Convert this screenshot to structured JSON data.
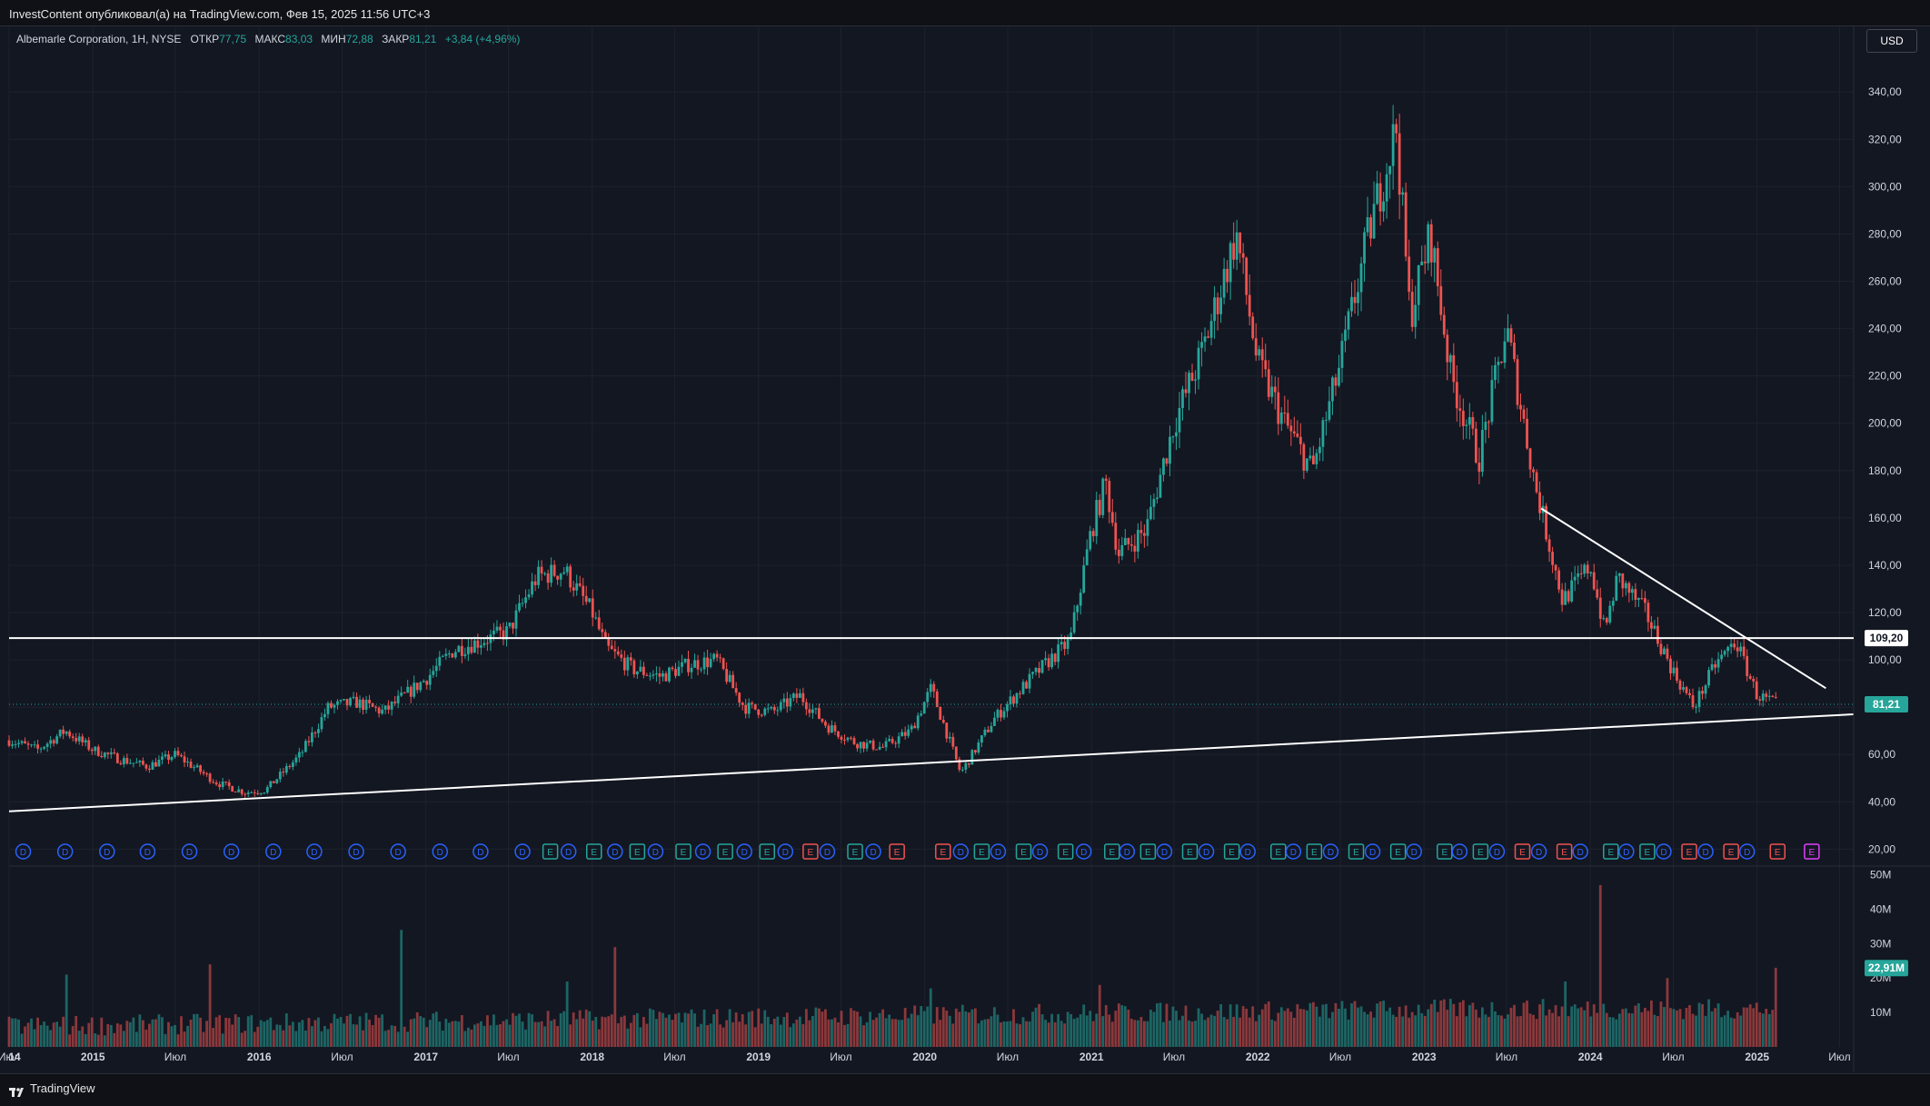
{
  "header": {
    "publish_note": "InvestContent опубликовал(а) на TradingView.com, Фев 15, 2025 11:56 UTC+3"
  },
  "legend": {
    "symbol": "Albemarle Corporation, 1Н, NYSE",
    "open_label": "ОТКР",
    "open_value": "77,75",
    "high_label": "МАКС",
    "high_value": "83,03",
    "low_label": "МИН",
    "low_value": "72,88",
    "close_label": "ЗАКР",
    "close_value": "81,21",
    "change": "+3,84 (+4,96%)"
  },
  "currency_button": "USD",
  "footer": {
    "brand": "TradingView"
  },
  "colors": {
    "up": "#26a69a",
    "down": "#ef5350",
    "background": "#131722",
    "grid": "#1e222d",
    "line": "#ffffff",
    "dividend_badge": "#2962ff",
    "earnings_badge": "#26a69a",
    "earnings_miss_badge": "#ef5350",
    "earnings_future_badge": "#e040fb",
    "text": "#d1d4dc"
  },
  "chart_data": [
    {
      "type": "candlestick",
      "x_axis": {
        "type": "time",
        "range": [
          "2014-07-01",
          "2025-08-01"
        ],
        "tick_labels": [
          {
            "date": "2014-01-01",
            "label": "14"
          },
          {
            "date": "2014-07-01",
            "label": "Июл"
          },
          {
            "date": "2015-01-01",
            "label": "2015"
          },
          {
            "date": "2015-07-01",
            "label": "Июл"
          },
          {
            "date": "2016-01-01",
            "label": "2016"
          },
          {
            "date": "2016-07-01",
            "label": "Июл"
          },
          {
            "date": "2017-01-01",
            "label": "2017"
          },
          {
            "date": "2017-07-01",
            "label": "Июл"
          },
          {
            "date": "2018-01-01",
            "label": "2018"
          },
          {
            "date": "2018-07-01",
            "label": "Июл"
          },
          {
            "date": "2019-01-01",
            "label": "2019"
          },
          {
            "date": "2019-07-01",
            "label": "Июл"
          },
          {
            "date": "2020-01-01",
            "label": "2020"
          },
          {
            "date": "2020-07-01",
            "label": "Июл"
          },
          {
            "date": "2021-01-01",
            "label": "2021"
          },
          {
            "date": "2021-07-01",
            "label": "Июл"
          },
          {
            "date": "2022-01-01",
            "label": "2022"
          },
          {
            "date": "2022-07-01",
            "label": "Июл"
          },
          {
            "date": "2023-01-01",
            "label": "2023"
          },
          {
            "date": "2023-07-01",
            "label": "Июл"
          },
          {
            "date": "2024-01-01",
            "label": "2024"
          },
          {
            "date": "2024-07-01",
            "label": "Июл"
          },
          {
            "date": "2025-01-01",
            "label": "2025"
          },
          {
            "date": "2025-07-01",
            "label": "Июл"
          }
        ]
      },
      "y_axis": {
        "scale": "linear",
        "ylim": [
          14,
          352
        ],
        "ticks": [
          20,
          40,
          60,
          80,
          100,
          120,
          140,
          160,
          180,
          200,
          220,
          240,
          260,
          280,
          300,
          320,
          340
        ],
        "tick_labels": [
          "20,00",
          "40,00",
          "60,00",
          "80,00",
          "100,00",
          "120,00",
          "140,00",
          "160,00",
          "180,00",
          "200,00",
          "220,00",
          "240,00",
          "260,00",
          "280,00",
          "300,00",
          "320,00",
          "340,00"
        ]
      },
      "price_path": [
        [
          "2014-07-01",
          66
        ],
        [
          "2014-09-01",
          62
        ],
        [
          "2014-11-01",
          70
        ],
        [
          "2015-01-01",
          62
        ],
        [
          "2015-03-01",
          58
        ],
        [
          "2015-05-01",
          55
        ],
        [
          "2015-07-01",
          60
        ],
        [
          "2015-10-01",
          48
        ],
        [
          "2015-12-01",
          44
        ],
        [
          "2016-01-15",
          45
        ],
        [
          "2016-04-01",
          60
        ],
        [
          "2016-06-01",
          80
        ],
        [
          "2016-08-01",
          82
        ],
        [
          "2016-10-01",
          78
        ],
        [
          "2017-01-01",
          92
        ],
        [
          "2017-03-01",
          104
        ],
        [
          "2017-05-01",
          108
        ],
        [
          "2017-07-01",
          112
        ],
        [
          "2017-09-01",
          135
        ],
        [
          "2017-11-01",
          138
        ],
        [
          "2018-01-01",
          120
        ],
        [
          "2018-02-01",
          105
        ],
        [
          "2018-04-01",
          96
        ],
        [
          "2018-06-01",
          93
        ],
        [
          "2018-08-01",
          98
        ],
        [
          "2018-10-01",
          100
        ],
        [
          "2018-12-01",
          80
        ],
        [
          "2019-02-01",
          78
        ],
        [
          "2019-04-01",
          85
        ],
        [
          "2019-06-01",
          72
        ],
        [
          "2019-08-01",
          65
        ],
        [
          "2019-10-01",
          63
        ],
        [
          "2019-12-01",
          70
        ],
        [
          "2020-01-15",
          88
        ],
        [
          "2020-03-20",
          52
        ],
        [
          "2020-06-01",
          75
        ],
        [
          "2020-08-01",
          88
        ],
        [
          "2020-10-01",
          100
        ],
        [
          "2020-11-15",
          108
        ],
        [
          "2021-01-01",
          155
        ],
        [
          "2021-02-01",
          175
        ],
        [
          "2021-03-01",
          145
        ],
        [
          "2021-05-01",
          155
        ],
        [
          "2021-07-01",
          200
        ],
        [
          "2021-09-01",
          230
        ],
        [
          "2021-11-15",
          280
        ],
        [
          "2022-01-01",
          225
        ],
        [
          "2022-03-01",
          200
        ],
        [
          "2022-05-01",
          180
        ],
        [
          "2022-07-01",
          225
        ],
        [
          "2022-09-01",
          280
        ],
        [
          "2022-11-01",
          325
        ],
        [
          "2022-12-01",
          245
        ],
        [
          "2023-01-15",
          280
        ],
        [
          "2023-03-01",
          220
        ],
        [
          "2023-05-01",
          185
        ],
        [
          "2023-07-01",
          240
        ],
        [
          "2023-09-01",
          175
        ],
        [
          "2023-11-01",
          125
        ],
        [
          "2024-01-01",
          140
        ],
        [
          "2024-02-01",
          112
        ],
        [
          "2024-03-01",
          135
        ],
        [
          "2024-05-01",
          120
        ],
        [
          "2024-07-01",
          95
        ],
        [
          "2024-08-15",
          80
        ],
        [
          "2024-10-01",
          98
        ],
        [
          "2024-11-15",
          108
        ],
        [
          "2025-01-01",
          85
        ],
        [
          "2025-02-14",
          81.21
        ]
      ],
      "last_price": 81.21,
      "last_price_label": "81,21",
      "horizontal_level": 109.2,
      "horizontal_level_label": "109,20",
      "support_trendline": [
        [
          "2014-07-01",
          36
        ],
        [
          "2025-07-31",
          77
        ]
      ],
      "resistance_trendline": [
        [
          "2023-09-15",
          164
        ],
        [
          "2025-06-01",
          88
        ]
      ],
      "event_markers": [
        {
          "type": "D",
          "date": "2014-08-01"
        },
        {
          "type": "D",
          "date": "2014-11-01"
        },
        {
          "type": "D",
          "date": "2015-02-01"
        },
        {
          "type": "D",
          "date": "2015-05-01"
        },
        {
          "type": "D",
          "date": "2015-08-01"
        },
        {
          "type": "D",
          "date": "2015-11-01"
        },
        {
          "type": "D",
          "date": "2016-02-01"
        },
        {
          "type": "D",
          "date": "2016-05-01"
        },
        {
          "type": "D",
          "date": "2016-08-01"
        },
        {
          "type": "D",
          "date": "2016-11-01"
        },
        {
          "type": "D",
          "date": "2017-02-01"
        },
        {
          "type": "D",
          "date": "2017-05-01"
        },
        {
          "type": "D",
          "date": "2017-08-01"
        },
        {
          "type": "E",
          "date": "2017-10-01",
          "status": "beat"
        },
        {
          "type": "D",
          "date": "2017-11-10"
        },
        {
          "type": "E",
          "date": "2018-01-05",
          "status": "beat"
        },
        {
          "type": "D",
          "date": "2018-02-20"
        },
        {
          "type": "E",
          "date": "2018-04-10",
          "status": "beat"
        },
        {
          "type": "D",
          "date": "2018-05-20"
        },
        {
          "type": "E",
          "date": "2018-07-20",
          "status": "beat"
        },
        {
          "type": "D",
          "date": "2018-09-01"
        },
        {
          "type": "E",
          "date": "2018-10-20",
          "status": "beat"
        },
        {
          "type": "D",
          "date": "2018-12-01"
        },
        {
          "type": "E",
          "date": "2019-01-20",
          "status": "beat"
        },
        {
          "type": "D",
          "date": "2019-03-01"
        },
        {
          "type": "E",
          "date": "2019-04-25",
          "status": "miss"
        },
        {
          "type": "D",
          "date": "2019-06-01"
        },
        {
          "type": "E",
          "date": "2019-08-01",
          "status": "beat"
        },
        {
          "type": "D",
          "date": "2019-09-10"
        },
        {
          "type": "E",
          "date": "2019-11-01",
          "status": "miss"
        },
        {
          "type": "E",
          "date": "2020-02-10",
          "status": "miss"
        },
        {
          "type": "D",
          "date": "2020-03-20"
        },
        {
          "type": "E",
          "date": "2020-05-05",
          "status": "beat"
        },
        {
          "type": "D",
          "date": "2020-06-10"
        },
        {
          "type": "E",
          "date": "2020-08-05",
          "status": "beat"
        },
        {
          "type": "D",
          "date": "2020-09-10"
        },
        {
          "type": "E",
          "date": "2020-11-05",
          "status": "beat"
        },
        {
          "type": "D",
          "date": "2020-12-15"
        },
        {
          "type": "E",
          "date": "2021-02-15",
          "status": "beat"
        },
        {
          "type": "D",
          "date": "2021-03-20"
        },
        {
          "type": "E",
          "date": "2021-05-05",
          "status": "beat"
        },
        {
          "type": "D",
          "date": "2021-06-10"
        },
        {
          "type": "E",
          "date": "2021-08-05",
          "status": "beat"
        },
        {
          "type": "D",
          "date": "2021-09-10"
        },
        {
          "type": "E",
          "date": "2021-11-05",
          "status": "beat"
        },
        {
          "type": "D",
          "date": "2021-12-10"
        },
        {
          "type": "E",
          "date": "2022-02-15",
          "status": "beat"
        },
        {
          "type": "D",
          "date": "2022-03-20"
        },
        {
          "type": "E",
          "date": "2022-05-05",
          "status": "beat"
        },
        {
          "type": "D",
          "date": "2022-06-10"
        },
        {
          "type": "E",
          "date": "2022-08-05",
          "status": "beat"
        },
        {
          "type": "D",
          "date": "2022-09-10"
        },
        {
          "type": "E",
          "date": "2022-11-05",
          "status": "beat"
        },
        {
          "type": "D",
          "date": "2022-12-10"
        },
        {
          "type": "E",
          "date": "2023-02-15",
          "status": "beat"
        },
        {
          "type": "D",
          "date": "2023-03-20"
        },
        {
          "type": "E",
          "date": "2023-05-05",
          "status": "beat"
        },
        {
          "type": "D",
          "date": "2023-06-10"
        },
        {
          "type": "E",
          "date": "2023-08-05",
          "status": "miss"
        },
        {
          "type": "D",
          "date": "2023-09-10"
        },
        {
          "type": "E",
          "date": "2023-11-05",
          "status": "miss"
        },
        {
          "type": "D",
          "date": "2023-12-10"
        },
        {
          "type": "E",
          "date": "2024-02-15",
          "status": "beat"
        },
        {
          "type": "D",
          "date": "2024-03-20"
        },
        {
          "type": "E",
          "date": "2024-05-05",
          "status": "beat"
        },
        {
          "type": "D",
          "date": "2024-06-10"
        },
        {
          "type": "E",
          "date": "2024-08-05",
          "status": "miss"
        },
        {
          "type": "D",
          "date": "2024-09-10"
        },
        {
          "type": "E",
          "date": "2024-11-05",
          "status": "miss"
        },
        {
          "type": "D",
          "date": "2024-12-10"
        },
        {
          "type": "E",
          "date": "2025-02-15",
          "status": "miss"
        },
        {
          "type": "E",
          "date": "2025-05-01",
          "status": "future"
        }
      ]
    },
    {
      "type": "bar",
      "name": "volume",
      "y_axis": {
        "ylim": [
          0,
          52
        ],
        "ticks": [
          10,
          20,
          30,
          40,
          50
        ],
        "tick_labels": [
          "10M",
          "20M",
          "30M",
          "40M",
          "50M"
        ]
      },
      "last_value": 22.91,
      "last_value_label": "22,91M",
      "spikes": [
        [
          "2014-11-01",
          21
        ],
        [
          "2015-09-15",
          24
        ],
        [
          "2016-11-10",
          34
        ],
        [
          "2017-11-10",
          19
        ],
        [
          "2018-02-20",
          29
        ],
        [
          "2020-01-15",
          17
        ],
        [
          "2021-01-20",
          18
        ],
        [
          "2023-11-10",
          19
        ],
        [
          "2024-01-25",
          47
        ],
        [
          "2024-06-15",
          20
        ],
        [
          "2025-02-14",
          23
        ]
      ]
    }
  ]
}
